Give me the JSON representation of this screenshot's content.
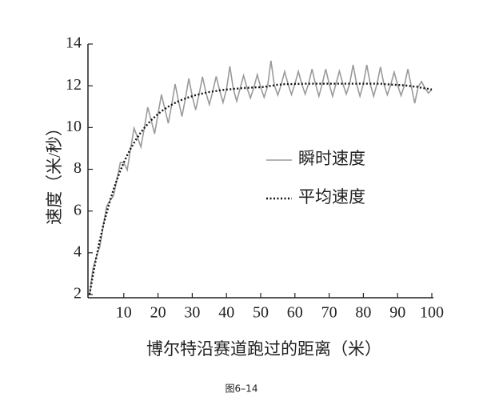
{
  "chart_data": {
    "type": "line",
    "y_label": "速度（米/秒）",
    "x_label": "博尔特沿赛道跑过的距离（米）",
    "caption": "图6–14",
    "x": [
      0,
      1,
      2,
      3,
      4,
      5,
      6,
      7,
      8,
      9,
      10,
      11,
      12,
      13,
      14,
      15,
      16,
      17,
      18,
      19,
      20,
      21,
      22,
      23,
      24,
      25,
      26,
      27,
      28,
      29,
      30,
      31,
      32,
      33,
      34,
      35,
      36,
      37,
      38,
      39,
      40,
      41,
      42,
      43,
      44,
      45,
      46,
      47,
      48,
      49,
      50,
      51,
      52,
      53,
      54,
      55,
      56,
      57,
      58,
      59,
      60,
      61,
      62,
      63,
      64,
      65,
      66,
      67,
      68,
      69,
      70,
      71,
      72,
      73,
      74,
      75,
      76,
      77,
      78,
      79,
      80,
      81,
      82,
      83,
      84,
      85,
      86,
      87,
      88,
      89,
      90,
      91,
      92,
      93,
      94,
      95,
      96,
      97,
      98,
      99,
      100
    ],
    "series": [
      {
        "name": "瞬时速度",
        "color": "#9a9a9a",
        "style": "solid",
        "values": [
          2.0,
          3.25,
          3.81,
          4.29,
          5.3,
          6.23,
          6.51,
          6.73,
          7.51,
          8.33,
          8.32,
          7.97,
          8.99,
          9.97,
          9.53,
          9.07,
          9.98,
          10.97,
          10.35,
          9.7,
          10.65,
          11.58,
          10.89,
          10.2,
          11.09,
          12.08,
          11.26,
          10.53,
          11.39,
          12.35,
          11.5,
          10.85,
          11.59,
          12.43,
          11.67,
          11.1,
          11.73,
          12.45,
          11.78,
          11.2,
          11.82,
          12.93,
          11.85,
          11.26,
          11.88,
          12.49,
          11.9,
          11.41,
          11.92,
          12.53,
          11.93,
          11.45,
          11.97,
          13.2,
          12.02,
          11.55,
          12.06,
          12.68,
          12.08,
          11.58,
          12.09,
          12.69,
          12.09,
          11.6,
          12.1,
          12.8,
          12.1,
          11.5,
          12.1,
          12.8,
          12.1,
          11.5,
          12.1,
          12.7,
          12.1,
          11.6,
          12.1,
          13.0,
          12.1,
          11.5,
          12.1,
          13.0,
          12.1,
          11.5,
          12.1,
          12.9,
          12.08,
          11.57,
          12.06,
          12.65,
          12.04,
          11.53,
          12.02,
          12.8,
          11.98,
          11.16,
          11.95,
          12.2,
          11.88,
          11.65,
          11.82
        ]
      },
      {
        "name": "平均速度",
        "color": "#111111",
        "style": "dotted",
        "values": [
          2.0,
          2.95,
          3.81,
          4.59,
          5.3,
          5.93,
          6.51,
          7.03,
          7.51,
          7.93,
          8.32,
          8.67,
          8.99,
          9.27,
          9.53,
          9.77,
          9.98,
          10.17,
          10.35,
          10.5,
          10.65,
          10.78,
          10.89,
          11.0,
          11.09,
          11.18,
          11.26,
          11.33,
          11.39,
          11.45,
          11.5,
          11.55,
          11.59,
          11.63,
          11.67,
          11.7,
          11.73,
          11.75,
          11.78,
          11.8,
          11.82,
          11.83,
          11.85,
          11.86,
          11.88,
          11.89,
          11.9,
          11.91,
          11.92,
          11.93,
          11.93,
          11.95,
          11.97,
          12.0,
          12.02,
          12.05,
          12.06,
          12.08,
          12.08,
          12.08,
          12.09,
          12.09,
          12.09,
          12.1,
          12.1,
          12.1,
          12.1,
          12.1,
          12.1,
          12.1,
          12.1,
          12.1,
          12.1,
          12.1,
          12.1,
          12.1,
          12.1,
          12.1,
          12.1,
          12.1,
          12.1,
          12.1,
          12.1,
          12.1,
          12.1,
          12.1,
          12.08,
          12.07,
          12.06,
          12.05,
          12.04,
          12.03,
          12.02,
          12.0,
          11.98,
          11.96,
          11.95,
          11.9,
          11.88,
          11.85,
          11.82
        ]
      }
    ],
    "xlim": [
      0,
      100
    ],
    "xticks": [
      10,
      20,
      30,
      40,
      50,
      60,
      70,
      80,
      90,
      100
    ],
    "ylim": [
      2,
      14
    ],
    "yticks": [
      2,
      4,
      6,
      8,
      10,
      12,
      14
    ],
    "legend": "right"
  }
}
